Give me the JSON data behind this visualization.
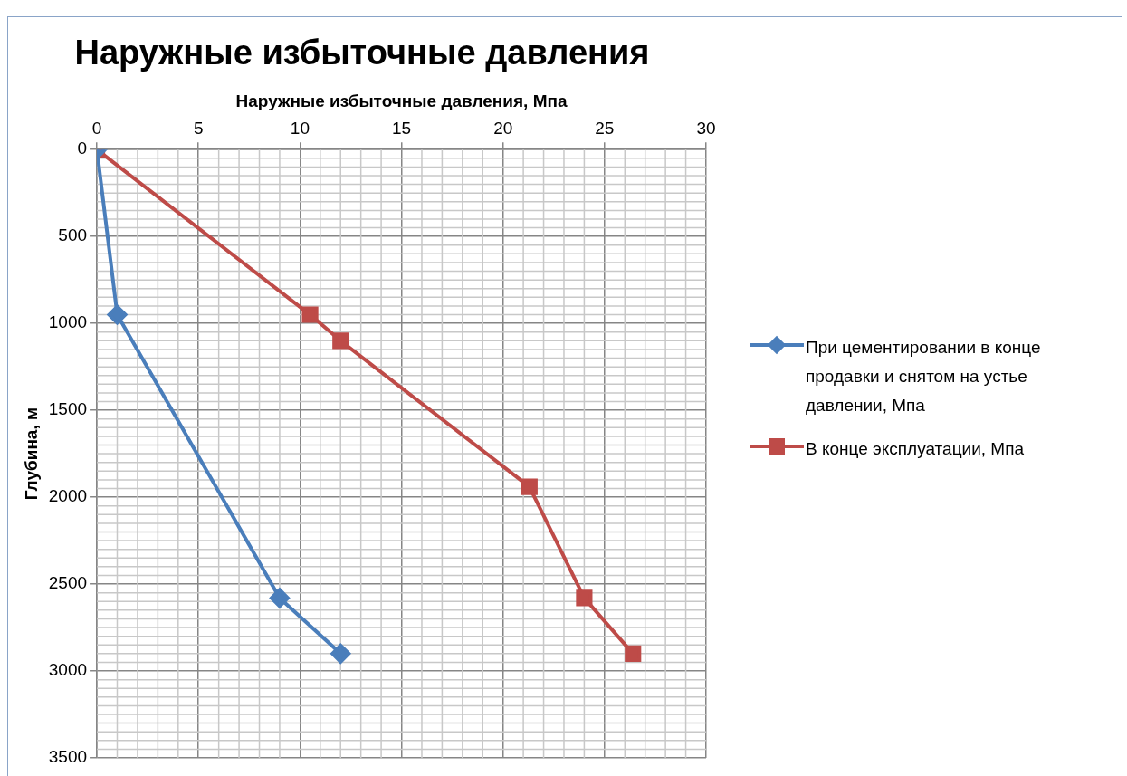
{
  "chart_data": {
    "type": "line",
    "title": "Наружные избыточные давления",
    "xlabel": "Наружные избыточные давления, Мпа",
    "ylabel": "Глубина, м",
    "xlim": [
      0,
      30
    ],
    "xticks": [
      0,
      5,
      10,
      15,
      20,
      25,
      30
    ],
    "ylim": [
      3500,
      0
    ],
    "yticks": [
      0,
      500,
      1000,
      1500,
      2000,
      2500,
      3000,
      3500
    ],
    "grid": true,
    "legend": "right",
    "line_style": "solid",
    "series": [
      {
        "name": "При цементировании в конце продавки и снятом на устье давлении, Мпа",
        "color": "#4a7ebb",
        "marker": "diamond",
        "x": [
          0,
          1,
          9,
          12
        ],
        "values": [
          0,
          950,
          2580,
          2900
        ]
      },
      {
        "name": "В конце эксплуатации, Мпа",
        "color": "#be4b48",
        "marker": "square",
        "x": [
          0,
          10.5,
          12,
          21.3,
          24,
          26.4
        ],
        "values": [
          0,
          950,
          1100,
          1940,
          2580,
          2900
        ]
      }
    ]
  }
}
